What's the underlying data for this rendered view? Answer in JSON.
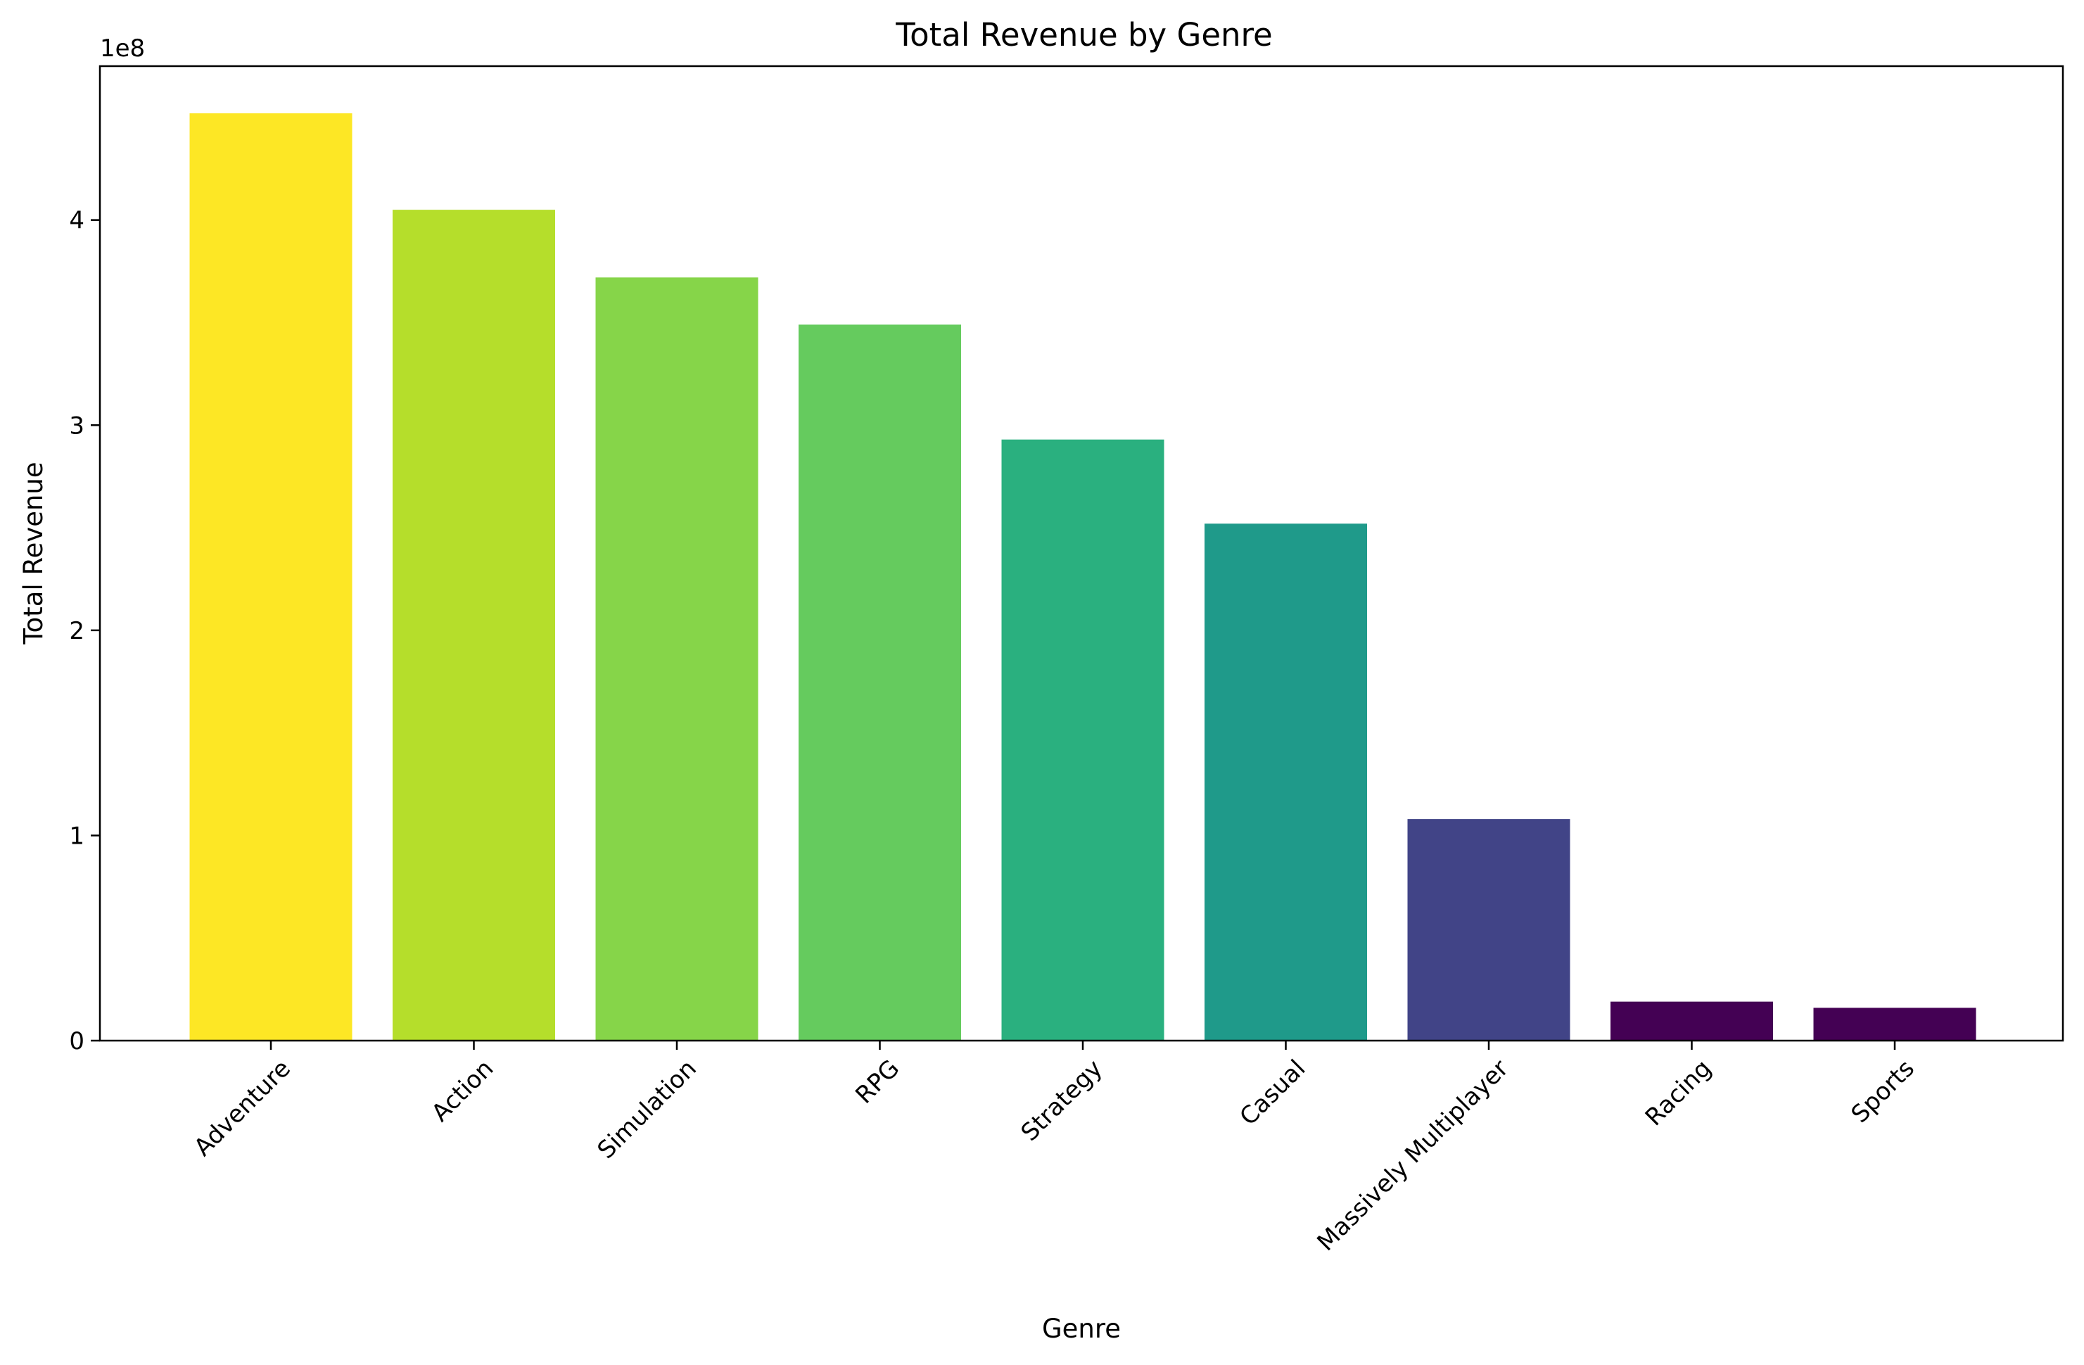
{
  "chart_data": {
    "type": "bar",
    "title": "Total Revenue by Genre",
    "xlabel": "Genre",
    "ylabel": "Total Revenue",
    "y_multiplier_label": "1e8",
    "y_multiplier": 100000000,
    "categories": [
      "Adventure",
      "Action",
      "Simulation",
      "RPG",
      "Strategy",
      "Casual",
      "Massively Multiplayer",
      "Racing",
      "Sports"
    ],
    "values": [
      452000000,
      405000000,
      372000000,
      349000000,
      293000000,
      252000000,
      108000000,
      19000000,
      16000000
    ],
    "colors": [
      "#fde725",
      "#b5de2b",
      "#86d549",
      "#65cb5e",
      "#2ab07f",
      "#1f9a8a",
      "#414487",
      "#440154",
      "#440154"
    ],
    "ylim": [
      0,
      475000000
    ],
    "yticks": [
      0,
      100000000,
      200000000,
      300000000,
      400000000
    ],
    "ytick_labels": [
      "0",
      "1",
      "2",
      "3",
      "4"
    ],
    "x_tick_rotation_deg": 45,
    "grid": false,
    "legend": "none"
  }
}
